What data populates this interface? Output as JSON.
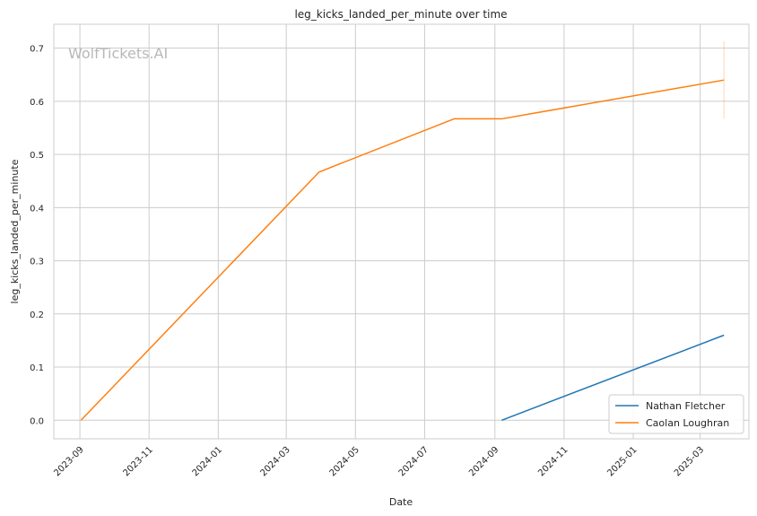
{
  "chart_data": {
    "type": "line",
    "title": "leg_kicks_landed_per_minute over time",
    "xlabel": "Date",
    "ylabel": "leg_kicks_landed_per_minute",
    "watermark": "WolfTickets.AI",
    "x_tick_labels": [
      "2023-09",
      "2023-11",
      "2024-01",
      "2024-03",
      "2024-05",
      "2024-07",
      "2024-09",
      "2024-11",
      "2025-01",
      "2025-03"
    ],
    "y_tick_labels": [
      "0.0",
      "0.1",
      "0.2",
      "0.3",
      "0.4",
      "0.5",
      "0.6",
      "0.7"
    ],
    "xlim": [
      "2023-08-09",
      "2025-04-13"
    ],
    "ylim": [
      -0.035,
      0.745
    ],
    "grid": true,
    "legend_position": "bottom-right",
    "series": [
      {
        "name": "Nathan Fletcher",
        "color": "#1f77b4",
        "x": [
          "2024-09-07",
          "2025-03-22"
        ],
        "y": [
          0.0,
          0.16
        ]
      },
      {
        "name": "Caolan Loughran",
        "color": "#ff7f0e",
        "x": [
          "2023-09-02",
          "2024-03-30",
          "2024-07-27",
          "2024-09-07",
          "2025-03-22"
        ],
        "y": [
          0.0,
          0.467,
          0.567,
          0.567,
          0.64
        ],
        "error_bar": {
          "x": "2025-03-22",
          "low": 0.567,
          "high": 0.713
        }
      }
    ]
  }
}
